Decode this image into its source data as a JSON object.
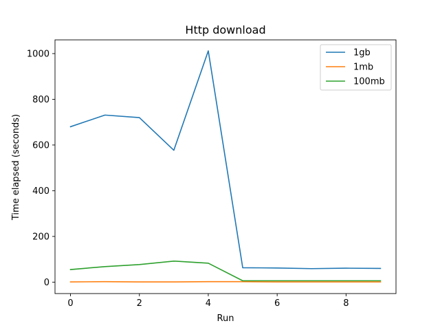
{
  "chart_data": {
    "type": "line",
    "title": "Http download",
    "xlabel": "Run",
    "ylabel": "Time elapsed (seconds)",
    "x": [
      0,
      1,
      2,
      3,
      4,
      5,
      6,
      7,
      8,
      9
    ],
    "xlim": [
      -0.45,
      9.45
    ],
    "ylim": [
      -50,
      1060
    ],
    "xticks": [
      0,
      2,
      4,
      6,
      8
    ],
    "yticks": [
      0,
      200,
      400,
      600,
      800,
      1000
    ],
    "grid": false,
    "legend_position": "top-right",
    "series": [
      {
        "name": "1gb",
        "color": "#1f77b4",
        "values": [
          680,
          731,
          720,
          577,
          1012,
          63,
          62,
          59,
          61,
          60
        ]
      },
      {
        "name": "1mb",
        "color": "#ff7f0e",
        "values": [
          1,
          2,
          1,
          1,
          2,
          2,
          1,
          1,
          1,
          1
        ]
      },
      {
        "name": "100mb",
        "color": "#2ca02c",
        "values": [
          55,
          68,
          77,
          92,
          83,
          6,
          6,
          6,
          6,
          6
        ]
      }
    ]
  }
}
